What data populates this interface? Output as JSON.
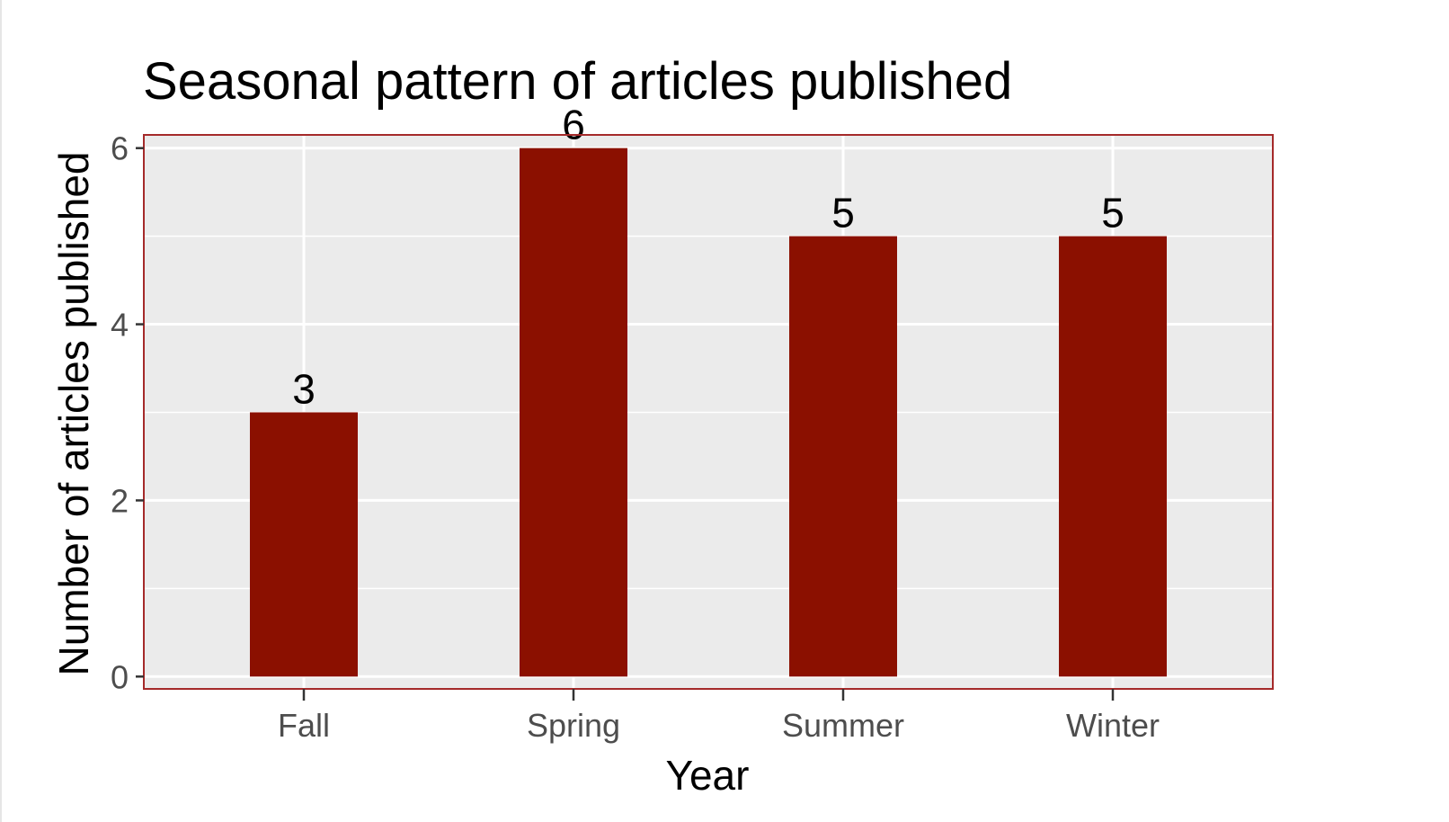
{
  "chart_data": {
    "type": "bar",
    "title": "Seasonal pattern of articles published",
    "xlabel": "Year",
    "ylabel": "Number of articles published",
    "categories": [
      "Fall",
      "Spring",
      "Summer",
      "Winter"
    ],
    "values": [
      3,
      6,
      5,
      5
    ],
    "data_labels": [
      "3",
      "6",
      "5",
      "5"
    ],
    "ylim": [
      -0.14,
      6.15
    ],
    "yticks": [
      0,
      2,
      4,
      6
    ],
    "ytick_labels": [
      "0",
      "2",
      "4",
      "6"
    ],
    "grid": true,
    "legend": "none",
    "colors": {
      "bar": "#8B1000",
      "panel_background": "#EBEBEB",
      "panel_border": "#A52A2A",
      "grid": "#FFFFFF"
    }
  }
}
